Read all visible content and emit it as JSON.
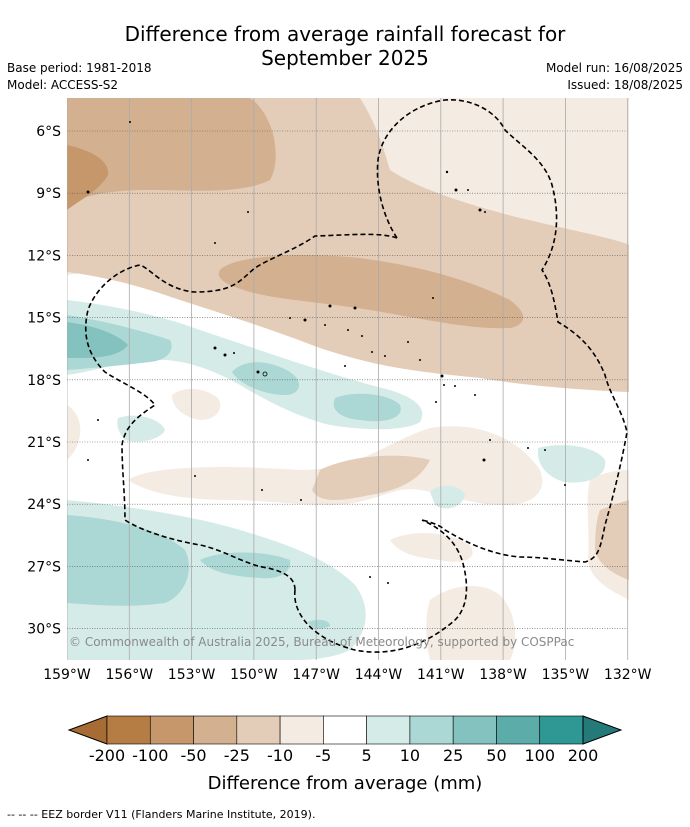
{
  "title_line1": "Difference from average rainfall forecast for",
  "title_line2": "September 2025",
  "left_meta": {
    "base_period": "Base period: 1981-2018",
    "model": "Model: ACCESS-S2"
  },
  "right_meta": {
    "model_run": "Model run: 16/08/2025",
    "issued": "Issued: 18/08/2025"
  },
  "copyright": "© Commonwealth of Australia 2025, Bureau of Meteorology, supported by COSPPac",
  "lat_labels": [
    "6°S",
    "9°S",
    "12°S",
    "15°S",
    "18°S",
    "21°S",
    "24°S",
    "27°S",
    "30°S"
  ],
  "lon_labels": [
    "159°W",
    "156°W",
    "153°W",
    "150°W",
    "147°W",
    "144°W",
    "141°W",
    "138°W",
    "135°W",
    "132°W"
  ],
  "colorbar": {
    "labels": [
      "-200",
      "-100",
      "-50",
      "-25",
      "-10",
      "-5",
      "5",
      "10",
      "25",
      "50",
      "100",
      "200"
    ],
    "colors": [
      "#a66c34",
      "#b57c44",
      "#c6976b",
      "#d3b190",
      "#e3cdb8",
      "#f4ebe3",
      "#ffffff",
      "#d5ebe8",
      "#abd7d4",
      "#84c2bf",
      "#5cacaa",
      "#2f9794",
      "#247a78"
    ],
    "title": "Difference from average (mm)"
  },
  "footer": "-- -- -- EEZ border V11 (Flanders Marine Institute, 2019)."
}
